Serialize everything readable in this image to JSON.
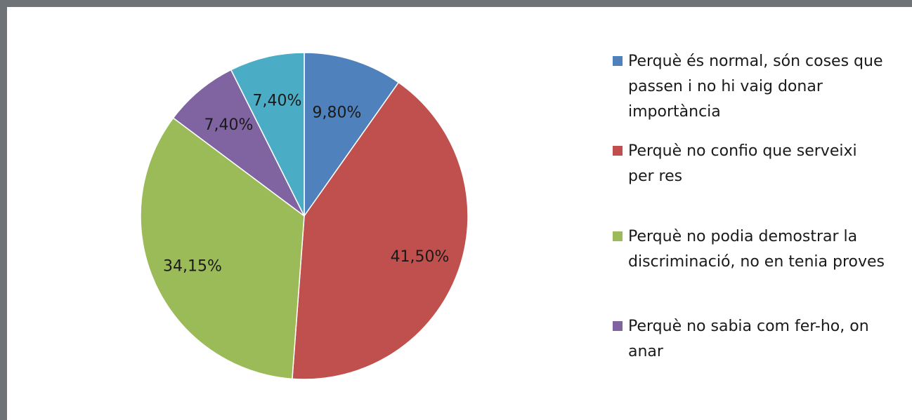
{
  "chart_data": {
    "type": "pie",
    "title": "",
    "slices": [
      {
        "label": "Perquè és normal, són coses que\npassen i no hi vaig donar\nimportància",
        "value": 9.8,
        "display": "9,80%",
        "color": "#4f81bd"
      },
      {
        "label": "Perquè no confio que serveixi\nper res",
        "value": 41.5,
        "display": "41,50%",
        "color": "#c0504d"
      },
      {
        "label": "Perquè no podia demostrar la\ndiscriminació, no en tenia proves",
        "value": 34.15,
        "display": "34,15%",
        "color": "#9bbb59"
      },
      {
        "label": "Perquè no sabia com fer-ho, on\nanar",
        "value": 7.4,
        "display": "7,40%",
        "color": "#8064a2"
      },
      {
        "label": "",
        "value": 7.4,
        "display": "7,40%",
        "color": "#4bacc6"
      }
    ],
    "legend_position": "right"
  }
}
